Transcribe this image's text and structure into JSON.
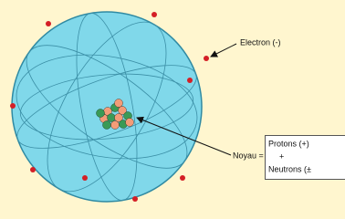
{
  "labels": {
    "electron": "Electron (-)",
    "nucleus": "Noyau =",
    "protons": "Protons (+)",
    "plus": "+",
    "neutrons": "Neutrons (±"
  }
}
